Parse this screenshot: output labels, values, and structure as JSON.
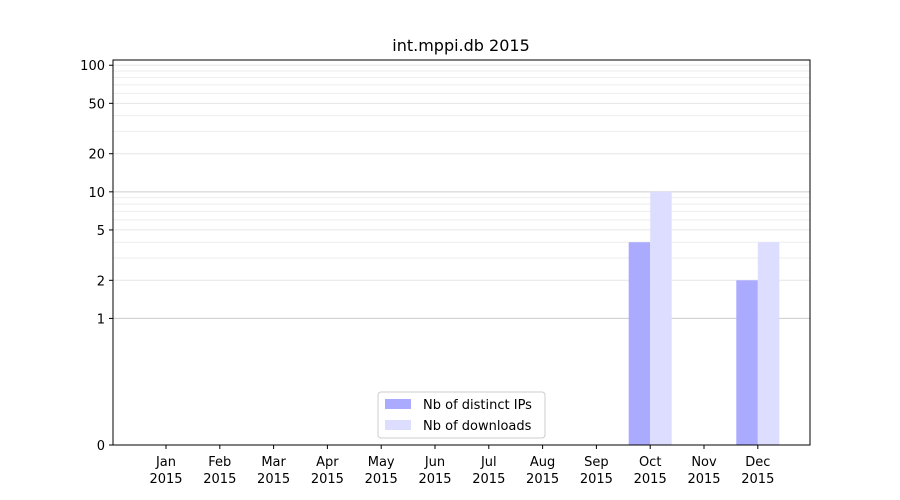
{
  "chart_data": {
    "type": "bar",
    "title": "int.mppi.db 2015",
    "xlabel": "",
    "ylabel": "",
    "y_scale": "symlog",
    "ylim": [
      0,
      110
    ],
    "yticks": [
      0,
      1,
      2,
      5,
      10,
      20,
      50,
      100
    ],
    "ytick_labels": [
      "0",
      "1",
      "2",
      "5",
      "10",
      "20",
      "50",
      "100"
    ],
    "grid": true,
    "legend_position": "lower center",
    "categories": [
      [
        "Jan",
        "2015"
      ],
      [
        "Feb",
        "2015"
      ],
      [
        "Mar",
        "2015"
      ],
      [
        "Apr",
        "2015"
      ],
      [
        "May",
        "2015"
      ],
      [
        "Jun",
        "2015"
      ],
      [
        "Jul",
        "2015"
      ],
      [
        "Aug",
        "2015"
      ],
      [
        "Sep",
        "2015"
      ],
      [
        "Oct",
        "2015"
      ],
      [
        "Nov",
        "2015"
      ],
      [
        "Dec",
        "2015"
      ]
    ],
    "series": [
      {
        "name": "Nb of distinct IPs",
        "color": "#aaaaff",
        "values": [
          0,
          0,
          0,
          0,
          0,
          0,
          0,
          0,
          0,
          4,
          0,
          2
        ]
      },
      {
        "name": "Nb of downloads",
        "color": "#ddddff",
        "values": [
          0,
          0,
          0,
          0,
          0,
          0,
          0,
          0,
          0,
          10,
          0,
          4
        ]
      }
    ]
  }
}
